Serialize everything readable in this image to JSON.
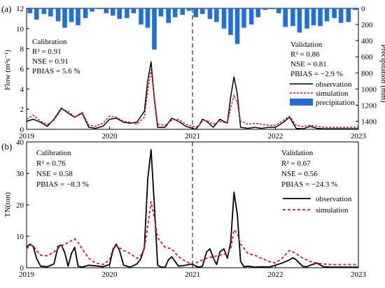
{
  "colors": {
    "observation": "#000000",
    "simulation": "#e8141b",
    "precipitation": "#1f6fe0",
    "split_line": "#000000"
  },
  "chart_data": [
    {
      "panel_label": "(a)",
      "type": "line",
      "ylabel": "Flow (m³s⁻¹)",
      "ylabel_right": "Precipitation (mm)",
      "xlim": [
        2019,
        2023
      ],
      "ylim": [
        0,
        12
      ],
      "ylim_right": [
        0,
        1500
      ],
      "right_axis_inverted": true,
      "x_ticks": [
        "2019",
        "2020",
        "2021",
        "2022",
        "2023"
      ],
      "y_ticks": [
        "0",
        "2",
        "4",
        "6",
        "8",
        "10",
        "12"
      ],
      "y_ticks_right": [
        "0",
        "200",
        "400",
        "600",
        "800",
        "1000",
        "1200",
        "1400"
      ],
      "split_at": 2021,
      "calibration": {
        "title": "Calibration",
        "lines": [
          "R² = 0.91",
          "NSE = 0.91",
          "PBIAS = 5.6 %"
        ]
      },
      "validation": {
        "title": "Validation",
        "lines": [
          "R² = 0.86",
          "NSE = 0.81",
          "PBIAS = −2.9 %"
        ]
      },
      "legend": [
        "observation",
        "simulation",
        "precipitation"
      ],
      "legend_position": "right",
      "series": [
        {
          "name": "observation",
          "style": "solid",
          "x": [
            2019.0,
            2019.08,
            2019.17,
            2019.25,
            2019.33,
            2019.42,
            2019.5,
            2019.58,
            2019.67,
            2019.75,
            2019.83,
            2019.92,
            2020.0,
            2020.08,
            2020.17,
            2020.25,
            2020.33,
            2020.42,
            2020.46,
            2020.5,
            2020.54,
            2020.58,
            2020.67,
            2020.75,
            2020.83,
            2020.92,
            2021.0,
            2021.04,
            2021.08,
            2021.12,
            2021.17,
            2021.25,
            2021.33,
            2021.42,
            2021.46,
            2021.5,
            2021.54,
            2021.58,
            2021.67,
            2021.75,
            2021.83,
            2021.92,
            2022.0,
            2022.08,
            2022.17,
            2022.25,
            2022.33,
            2022.42,
            2022.5,
            2022.58,
            2022.67,
            2022.75,
            2022.83,
            2022.92,
            2023.0
          ],
          "values": [
            0.8,
            1.0,
            0.7,
            0.3,
            1.0,
            2.1,
            1.6,
            1.2,
            1.6,
            0.2,
            0.1,
            0.3,
            1.0,
            1.1,
            0.7,
            0.6,
            0.7,
            1.8,
            4.8,
            6.7,
            3.0,
            0.2,
            0.2,
            1.1,
            0.8,
            0.3,
            0.1,
            0.0,
            0.4,
            1.0,
            0.8,
            0.2,
            1.0,
            0.6,
            3.2,
            5.2,
            3.5,
            0.2,
            0.1,
            0.2,
            0.1,
            0.2,
            0.2,
            0.6,
            1.2,
            0.1,
            0.05,
            0.3,
            0.1,
            0.05,
            0.05,
            0.05,
            0.05,
            0.05,
            0.05
          ]
        },
        {
          "name": "simulation",
          "style": "dashed",
          "x": [
            2019.0,
            2019.08,
            2019.17,
            2019.25,
            2019.33,
            2019.42,
            2019.5,
            2019.58,
            2019.67,
            2019.75,
            2019.83,
            2019.92,
            2020.0,
            2020.08,
            2020.17,
            2020.25,
            2020.33,
            2020.42,
            2020.46,
            2020.5,
            2020.54,
            2020.58,
            2020.67,
            2020.75,
            2020.83,
            2020.92,
            2021.0,
            2021.04,
            2021.08,
            2021.12,
            2021.17,
            2021.25,
            2021.33,
            2021.42,
            2021.46,
            2021.5,
            2021.54,
            2021.58,
            2021.67,
            2021.75,
            2021.83,
            2021.92,
            2022.0,
            2022.08,
            2022.17,
            2022.25,
            2022.33,
            2022.42,
            2022.5,
            2022.58,
            2022.67,
            2022.75,
            2022.83,
            2022.92,
            2023.0
          ],
          "values": [
            1.0,
            1.4,
            0.8,
            0.5,
            0.9,
            2.0,
            1.8,
            1.2,
            1.7,
            0.4,
            0.3,
            0.6,
            1.3,
            1.2,
            0.8,
            0.7,
            0.5,
            1.2,
            3.8,
            5.9,
            3.2,
            0.5,
            0.4,
            0.9,
            1.0,
            0.5,
            0.3,
            0.2,
            0.4,
            0.8,
            0.9,
            0.5,
            0.8,
            0.6,
            2.1,
            3.4,
            2.6,
            0.8,
            0.5,
            0.6,
            0.5,
            0.4,
            0.4,
            0.8,
            1.3,
            0.4,
            0.3,
            0.4,
            0.3,
            0.2,
            0.2,
            0.2,
            0.2,
            0.2,
            0.2
          ]
        },
        {
          "name": "precipitation",
          "type": "bar",
          "axis": "right",
          "x": [
            2019.04,
            2019.12,
            2019.21,
            2019.29,
            2019.38,
            2019.46,
            2019.54,
            2019.62,
            2019.71,
            2019.79,
            2019.88,
            2019.96,
            2020.04,
            2020.12,
            2020.21,
            2020.29,
            2020.38,
            2020.46,
            2020.54,
            2020.62,
            2020.71,
            2020.79,
            2020.88,
            2020.96,
            2021.04,
            2021.12,
            2021.21,
            2021.29,
            2021.38,
            2021.46,
            2021.54,
            2021.62,
            2021.71,
            2021.79,
            2021.88,
            2021.96,
            2022.04,
            2022.12,
            2022.21,
            2022.29,
            2022.38,
            2022.46,
            2022.54,
            2022.62,
            2022.71,
            2022.79,
            2022.88,
            2022.96
          ],
          "values": [
            60,
            140,
            70,
            100,
            160,
            240,
            170,
            210,
            120,
            40,
            10,
            60,
            90,
            130,
            120,
            60,
            200,
            240,
            510,
            100,
            180,
            110,
            80,
            30,
            110,
            70,
            130,
            170,
            250,
            330,
            440,
            240,
            200,
            110,
            20,
            10,
            60,
            230,
            220,
            300,
            250,
            210,
            220,
            160,
            120,
            180,
            170,
            20
          ]
        }
      ]
    },
    {
      "panel_label": "(b)",
      "type": "line",
      "ylabel": "TN(ton)",
      "xlim": [
        2019,
        2023
      ],
      "ylim": [
        0,
        40
      ],
      "x_ticks": [
        "2019",
        "2020",
        "2021",
        "2022",
        "2023"
      ],
      "y_ticks": [
        "0",
        "10",
        "20",
        "30",
        "40"
      ],
      "split_at": 2021,
      "calibration": {
        "title": "Calibration",
        "lines": [
          "R² = 0.76",
          "NSE = 0.58",
          "PBIAS = −8.3 %"
        ]
      },
      "validation": {
        "title": "Validation",
        "lines": [
          "R² = 0.67",
          "NSE = 0.56",
          "PBIAS = −24.3 %"
        ]
      },
      "legend": [
        "observation",
        "simulation"
      ],
      "legend_position": "right",
      "series": [
        {
          "name": "observation",
          "style": "solid",
          "x": [
            2019.0,
            2019.04,
            2019.08,
            2019.12,
            2019.17,
            2019.25,
            2019.33,
            2019.38,
            2019.42,
            2019.46,
            2019.5,
            2019.54,
            2019.58,
            2019.62,
            2019.67,
            2019.71,
            2019.75,
            2019.83,
            2019.92,
            2020.0,
            2020.04,
            2020.08,
            2020.12,
            2020.17,
            2020.21,
            2020.25,
            2020.33,
            2020.38,
            2020.42,
            2020.46,
            2020.5,
            2020.54,
            2020.58,
            2020.62,
            2020.67,
            2020.71,
            2020.75,
            2020.79,
            2020.83,
            2020.92,
            2021.0,
            2021.04,
            2021.08,
            2021.12,
            2021.17,
            2021.21,
            2021.25,
            2021.29,
            2021.33,
            2021.38,
            2021.42,
            2021.46,
            2021.5,
            2021.54,
            2021.58,
            2021.62,
            2021.67,
            2021.75,
            2021.83,
            2021.92,
            2022.0,
            2022.08,
            2022.17,
            2022.21,
            2022.25,
            2022.33,
            2022.38,
            2022.42,
            2022.5,
            2022.58,
            2022.67,
            2022.75,
            2022.83,
            2022.92,
            2023.0
          ],
          "values": [
            6.5,
            7.5,
            6.8,
            3.0,
            0.5,
            0.3,
            1.2,
            6.8,
            7.2,
            4.8,
            0.5,
            4.5,
            6.5,
            0.5,
            0.2,
            0.5,
            0.8,
            0.6,
            0.3,
            1.0,
            5.5,
            7.5,
            5.5,
            0.8,
            0.5,
            0.2,
            1.2,
            3.0,
            6.5,
            28.0,
            37.5,
            20.0,
            0.8,
            0.2,
            0.2,
            2.5,
            3.5,
            2.0,
            0.5,
            0.8,
            1.2,
            0.5,
            0.2,
            0.5,
            5.0,
            6.0,
            3.2,
            1.0,
            5.0,
            6.0,
            3.0,
            8.0,
            24.0,
            17.0,
            2.0,
            0.3,
            0.5,
            0.2,
            0.3,
            0.2,
            0.8,
            1.5,
            2.5,
            3.2,
            2.5,
            0.4,
            0.3,
            0.8,
            1.5,
            0.3,
            0.2,
            0.2,
            0.2,
            0.2,
            0.2
          ]
        },
        {
          "name": "simulation",
          "style": "dashed",
          "x": [
            2019.0,
            2019.04,
            2019.08,
            2019.12,
            2019.17,
            2019.25,
            2019.33,
            2019.42,
            2019.5,
            2019.58,
            2019.62,
            2019.67,
            2019.75,
            2019.83,
            2019.92,
            2020.0,
            2020.04,
            2020.08,
            2020.17,
            2020.25,
            2020.33,
            2020.38,
            2020.42,
            2020.46,
            2020.5,
            2020.54,
            2020.58,
            2020.67,
            2020.75,
            2020.83,
            2020.92,
            2021.0,
            2021.08,
            2021.17,
            2021.25,
            2021.33,
            2021.42,
            2021.46,
            2021.5,
            2021.54,
            2021.58,
            2021.67,
            2021.75,
            2021.83,
            2021.92,
            2022.0,
            2022.08,
            2022.17,
            2022.25,
            2022.33,
            2022.42,
            2022.5,
            2022.58,
            2022.67,
            2022.75,
            2022.83,
            2022.92,
            2023.0
          ],
          "values": [
            6.0,
            7.2,
            7.0,
            5.5,
            4.0,
            3.8,
            5.0,
            7.0,
            8.0,
            9.2,
            8.0,
            6.0,
            3.0,
            1.5,
            1.0,
            2.5,
            6.0,
            7.0,
            5.5,
            4.5,
            3.0,
            4.0,
            6.0,
            13.0,
            21.0,
            16.0,
            9.5,
            6.5,
            6.0,
            3.5,
            2.0,
            1.0,
            2.0,
            3.0,
            3.5,
            4.0,
            4.5,
            6.0,
            12.0,
            11.0,
            7.5,
            4.5,
            4.0,
            3.0,
            2.0,
            1.5,
            3.0,
            5.5,
            4.5,
            3.0,
            2.0,
            1.5,
            1.2,
            1.0,
            1.0,
            1.0,
            1.0,
            1.0
          ]
        }
      ]
    }
  ]
}
